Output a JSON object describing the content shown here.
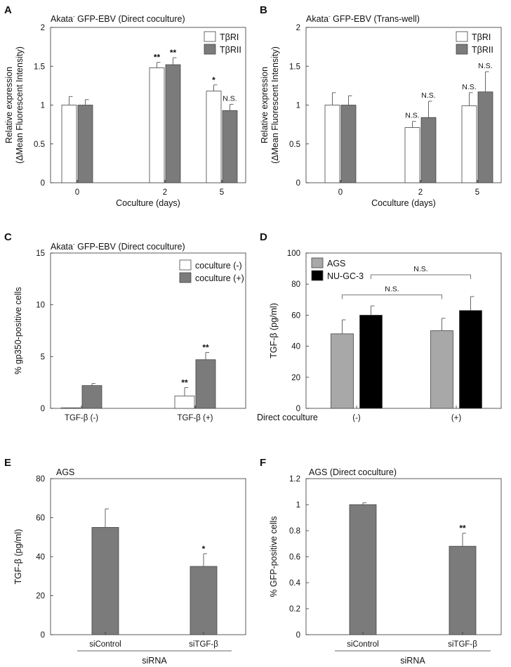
{
  "figure": {
    "panels": [
      "A",
      "B",
      "C",
      "D",
      "E",
      "F"
    ]
  },
  "colors": {
    "white_bar": "#ffffff",
    "gray_bar": "#7b7b7b",
    "light_gray_bar": "#a8a8a8",
    "black_bar": "#000000"
  },
  "chart_data": [
    {
      "id": "A",
      "type": "bar",
      "title": "Akata",
      "title_sup": "-",
      "title_rest": " GFP-EBV (Direct coculture)",
      "categories": [
        "0",
        "2",
        "5"
      ],
      "series": [
        {
          "name": "TβRI",
          "values": [
            1.0,
            1.48,
            1.18
          ],
          "errors": [
            0.11,
            0.07,
            0.08
          ],
          "color": "white"
        },
        {
          "name": "TβRII",
          "values": [
            1.0,
            1.52,
            0.93
          ],
          "errors": [
            0.07,
            0.09,
            0.08
          ],
          "color": "gray"
        }
      ],
      "annotations": [
        [
          "",
          "**",
          "*"
        ],
        [
          "",
          "**",
          "N.S."
        ]
      ],
      "xlabel": "Coculture (days)",
      "ylabel": [
        "Relative expression",
        "(ΔMean Fluorescent Intensity)"
      ],
      "ylim": [
        0,
        2
      ],
      "yticks": [
        0,
        0.5,
        1,
        1.5,
        2
      ],
      "ytick_labels": [
        "0",
        "0.5",
        "1",
        "1.5",
        "2"
      ],
      "legend": "top-right"
    },
    {
      "id": "B",
      "type": "bar",
      "title": "Akata",
      "title_sup": "-",
      "title_rest": " GFP-EBV (Trans-well)",
      "categories": [
        "0",
        "2",
        "5"
      ],
      "series": [
        {
          "name": "TβRI",
          "values": [
            1.0,
            0.71,
            0.99
          ],
          "errors": [
            0.16,
            0.08,
            0.17
          ],
          "color": "white"
        },
        {
          "name": "TβRII",
          "values": [
            1.0,
            0.84,
            1.17
          ],
          "errors": [
            0.12,
            0.21,
            0.26
          ],
          "color": "gray"
        }
      ],
      "annotations": [
        [
          "",
          "N.S.",
          "N.S."
        ],
        [
          "",
          "N.S.",
          "N.S."
        ]
      ],
      "xlabel": "Coculture (days)",
      "ylabel": [
        "Relative expression",
        "(ΔMean Fluorescent Intensity)"
      ],
      "ylim": [
        0,
        2
      ],
      "yticks": [
        0,
        0.5,
        1,
        1.5,
        2
      ],
      "ytick_labels": [
        "0",
        "0.5",
        "1",
        "1.5",
        "2"
      ],
      "legend": "top-right"
    },
    {
      "id": "C",
      "type": "bar",
      "title": "Akata",
      "title_sup": "-",
      "title_rest": " GFP-EBV (Direct coculture)",
      "categories": [
        "TGF-β (-)",
        "TGF-β (+)"
      ],
      "series": [
        {
          "name": "coculture (-)",
          "values": [
            0.05,
            1.2
          ],
          "errors": [
            0,
            0.8
          ],
          "color": "white"
        },
        {
          "name": "coculture (+)",
          "values": [
            2.2,
            4.7
          ],
          "errors": [
            0.2,
            0.7
          ],
          "color": "gray"
        }
      ],
      "annotations": [
        [
          "",
          "**"
        ],
        [
          "",
          "**"
        ]
      ],
      "xlabel": "",
      "ylabel": [
        "% gp350-positive cells"
      ],
      "ylim": [
        0,
        15
      ],
      "yticks": [
        0,
        5,
        10,
        15
      ],
      "ytick_labels": [
        "0",
        "5",
        "10",
        "15"
      ],
      "legend": "top-right"
    },
    {
      "id": "D",
      "type": "bar",
      "title": "",
      "categories": [
        "(-)",
        "(+)"
      ],
      "category_prefix": "Direct coculture",
      "series": [
        {
          "name": "AGS",
          "values": [
            48,
            50
          ],
          "errors": [
            9,
            8
          ],
          "color": "light_gray"
        },
        {
          "name": "NU-GC-3",
          "values": [
            60,
            63
          ],
          "errors": [
            6,
            9
          ],
          "color": "black"
        }
      ],
      "brackets": [
        "N.S.",
        "N.S."
      ],
      "xlabel": "",
      "ylabel": [
        "TGF-β (pg/ml)"
      ],
      "ylim": [
        0,
        100
      ],
      "yticks": [
        0,
        20,
        40,
        60,
        80,
        100
      ],
      "ytick_labels": [
        "0",
        "20",
        "40",
        "60",
        "80",
        "100"
      ],
      "legend": "top-left"
    },
    {
      "id": "E",
      "type": "bar",
      "title": "AGS",
      "categories": [
        "siControl",
        "siTGF-β"
      ],
      "series": [
        {
          "name": "TGF-β",
          "values": [
            55,
            35
          ],
          "errors": [
            9.5,
            6.5
          ],
          "color": "gray"
        }
      ],
      "annotations": [
        [
          "",
          "*"
        ]
      ],
      "group_label": "siRNA",
      "xlabel": "",
      "ylabel": [
        "TGF-β (pg/ml)"
      ],
      "ylim": [
        0,
        80
      ],
      "yticks": [
        0,
        20,
        40,
        60,
        80
      ],
      "ytick_labels": [
        "0",
        "20",
        "40",
        "60",
        "80"
      ]
    },
    {
      "id": "F",
      "type": "bar",
      "title": "AGS (Direct coculture)",
      "categories": [
        "siControl",
        "siTGF-β"
      ],
      "series": [
        {
          "name": "GFP",
          "values": [
            1.0,
            0.68
          ],
          "errors": [
            0.015,
            0.1
          ],
          "color": "gray"
        }
      ],
      "annotations": [
        [
          "",
          "**"
        ]
      ],
      "group_label": "siRNA",
      "xlabel": "",
      "ylabel": [
        "% GFP-positive cells"
      ],
      "ylim": [
        0,
        1.2
      ],
      "yticks": [
        0,
        0.2,
        0.4,
        0.6,
        0.8,
        1,
        1.2
      ],
      "ytick_labels": [
        "0",
        "0.2",
        "0.4",
        "0.6",
        "0.8",
        "1",
        "1.2"
      ]
    }
  ]
}
